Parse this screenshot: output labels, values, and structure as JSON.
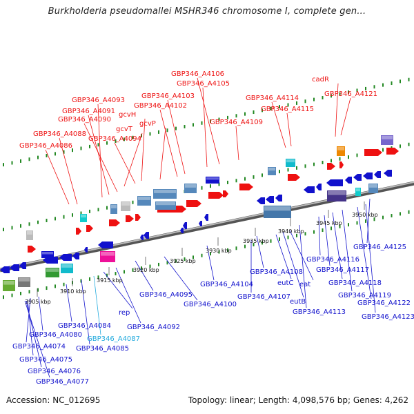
{
  "title": "Burkholderia pseudomallei MSHR346 chromosome I, complete gen...",
  "footer": {
    "accession": "Accession: NC_012695",
    "summary": "Topology: linear; Length: 4,098,576 bp; Genes: 4,262"
  },
  "colors": {
    "forward": "#ee1111",
    "reverse": "#1111cc",
    "pseudo": "#22aadd",
    "axis": "#888888",
    "ticks": "#22aa22"
  },
  "ticks": [
    "3905 kbp",
    "3910 kbp",
    "3915 kbp",
    "3920 kbp",
    "3925 kbp",
    "3930 kbp",
    "3935 kbp",
    "3940 kbp",
    "3945 kbp",
    "3950 kbp"
  ],
  "forward_labels": [
    "GBP346_A4086",
    "GBP346_A4088",
    "GBP346_A4094",
    "gcvT",
    "GBP346_A4090",
    "GBP346_A4091",
    "gcvH",
    "GBP346_A4093",
    "gcvP",
    "GBP346_A4102",
    "GBP346_A4103",
    "GBP346_A4105",
    "GBP346_A4106",
    "GBP346_A4109",
    "GBP346_A4114",
    "GBP346_A4115",
    "cadR",
    "GBP346_A4121"
  ],
  "reverse_labels": [
    "GBP346_A4077",
    "GBP346_A4076",
    "GBP346_A4075",
    "GBP346_A4074",
    "GBP346_A4080",
    "GBP346_A4084",
    "GBP346_A4087",
    "GBP346_A4085",
    "rep",
    "GBP346_A4092",
    "GBP346_A4095",
    "GBP346_A4100",
    "GBP346_A4104",
    "GBP346_A4107",
    "GBP346_A4108",
    "eutC",
    "eutB",
    "eat",
    "GBP346_A4113",
    "GBP346_A4116",
    "GBP346_A4117",
    "GBP346_A4118",
    "GBP346_A4119",
    "GBP346_A4122",
    "GBP346_A4123",
    "GBP346_A4125"
  ]
}
